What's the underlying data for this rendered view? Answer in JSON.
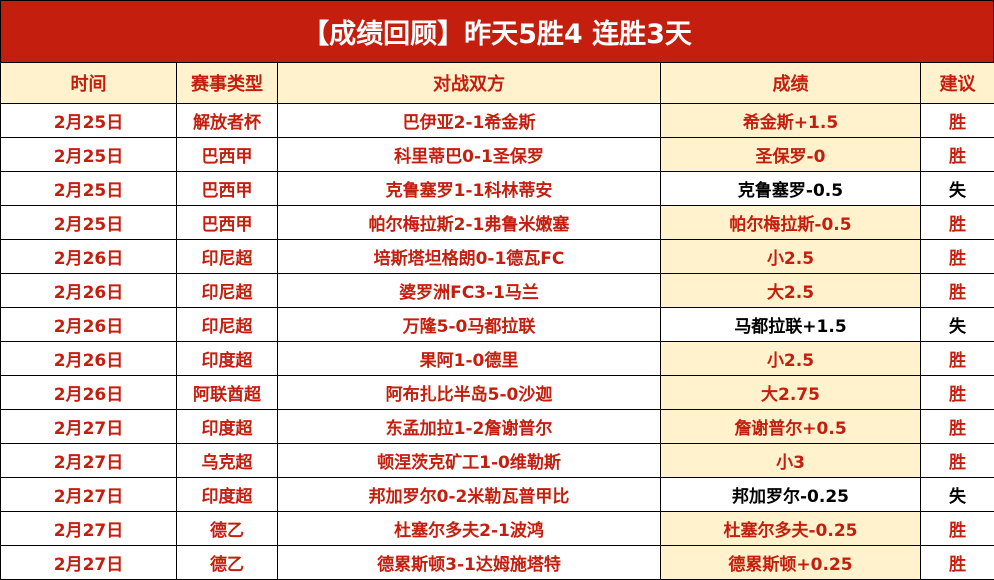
{
  "title": "【成绩回顾】昨天5胜4 连胜3天",
  "headers": [
    "时间",
    "赛事类型",
    "对战双方",
    "成绩",
    "建议"
  ],
  "colors": {
    "accent_red": "#c41e0e",
    "win_highlight": "#fff2cc"
  },
  "rows": [
    {
      "date": "2月25日",
      "league": "解放者杯",
      "match": "巴伊亚2-1希金斯",
      "result": "希金斯+1.5",
      "verdict": "胜"
    },
    {
      "date": "2月25日",
      "league": "巴西甲",
      "match": "科里蒂巴0-1圣保罗",
      "result": "圣保罗-0",
      "verdict": "胜"
    },
    {
      "date": "2月25日",
      "league": "巴西甲",
      "match": "克鲁塞罗1-1科林蒂安",
      "result": "克鲁塞罗-0.5",
      "verdict": "失"
    },
    {
      "date": "2月25日",
      "league": "巴西甲",
      "match": "帕尔梅拉斯2-1弗鲁米嫩塞",
      "result": "帕尔梅拉斯-0.5",
      "verdict": "胜"
    },
    {
      "date": "2月26日",
      "league": "印尼超",
      "match": "培斯塔坦格朗0-1德瓦FC",
      "result": "小2.5",
      "verdict": "胜"
    },
    {
      "date": "2月26日",
      "league": "印尼超",
      "match": "婆罗洲FC3-1马兰",
      "result": "大2.5",
      "verdict": "胜"
    },
    {
      "date": "2月26日",
      "league": "印尼超",
      "match": "万隆5-0马都拉联",
      "result": "马都拉联+1.5",
      "verdict": "失"
    },
    {
      "date": "2月26日",
      "league": "印度超",
      "match": "果阿1-0德里",
      "result": "小2.5",
      "verdict": "胜"
    },
    {
      "date": "2月26日",
      "league": "阿联酋超",
      "match": "阿布扎比半岛5-0沙迦",
      "result": "大2.75",
      "verdict": "胜"
    },
    {
      "date": "2月27日",
      "league": "印度超",
      "match": "东孟加拉1-2詹谢普尔",
      "result": "詹谢普尔+0.5",
      "verdict": "胜"
    },
    {
      "date": "2月27日",
      "league": "乌克超",
      "match": "顿涅茨克矿工1-0维勒斯",
      "result": "小3",
      "verdict": "胜"
    },
    {
      "date": "2月27日",
      "league": "印度超",
      "match": "邦加罗尔0-2米勒瓦普甲比",
      "result": "邦加罗尔-0.25",
      "verdict": "失"
    },
    {
      "date": "2月27日",
      "league": "德乙",
      "match": "杜塞尔多夫2-1波鸿",
      "result": "杜塞尔多夫-0.25",
      "verdict": "胜"
    },
    {
      "date": "2月27日",
      "league": "德乙",
      "match": "德累斯顿3-1达姆施塔特",
      "result": "德累斯顿+0.25",
      "verdict": "胜"
    }
  ]
}
